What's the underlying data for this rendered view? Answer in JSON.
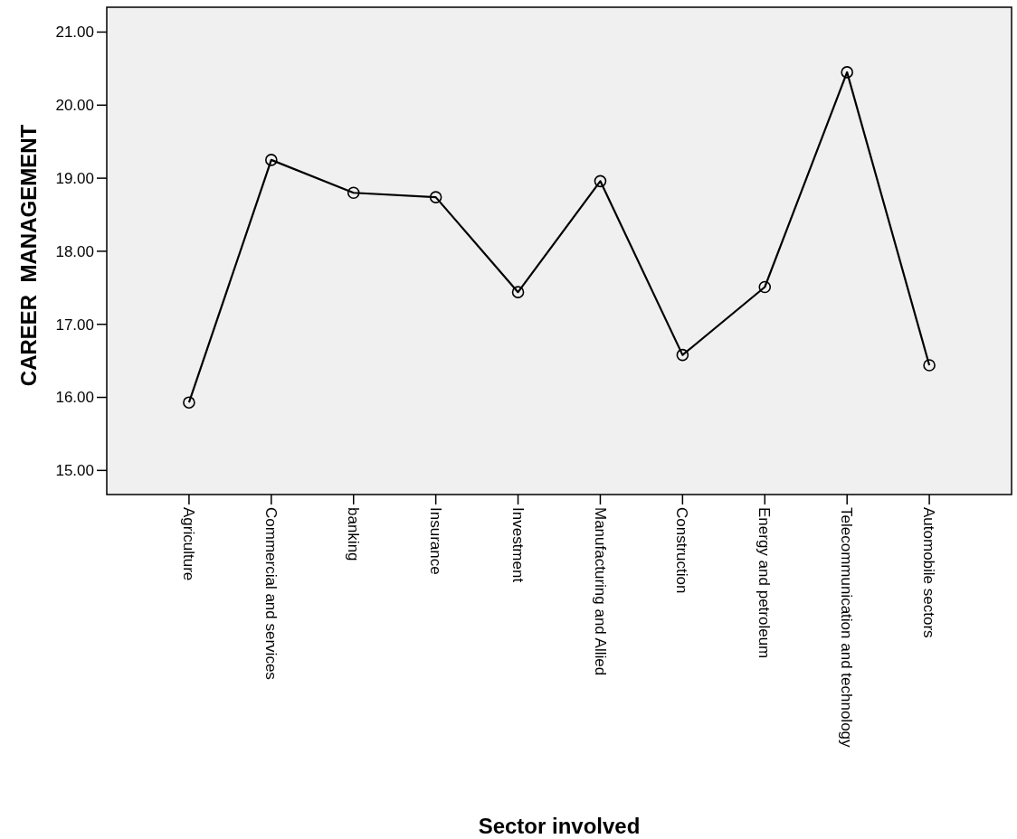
{
  "chart_data": {
    "type": "line",
    "xlabel": "Sector involved",
    "ylabel": "CAREER  MANAGEMENT",
    "categories": [
      "Agriculture",
      "Commercial and services",
      "banking",
      "Insurance",
      "Investment",
      "Manufacturing and Allied",
      "Construction",
      "Energy and petroleum",
      "Telecommunication and technology",
      "Automobile sectors"
    ],
    "series": [
      {
        "color": "#000000",
        "values": [
          15.93,
          19.25,
          18.8,
          18.74,
          17.44,
          18.96,
          16.58,
          17.51,
          20.45,
          16.44
        ]
      }
    ],
    "ylim": [
      14.67,
      21.34
    ],
    "yticks": [
      {
        "value": 15,
        "label": "15.00"
      },
      {
        "value": 16,
        "label": "16.00"
      },
      {
        "value": 17,
        "label": "17.00"
      },
      {
        "value": 18,
        "label": "18.00"
      },
      {
        "value": 19,
        "label": "19.00"
      },
      {
        "value": 20,
        "label": "20.00"
      },
      {
        "value": 21,
        "label": "21.00"
      }
    ],
    "marker": "circle",
    "line_style": "solid"
  }
}
